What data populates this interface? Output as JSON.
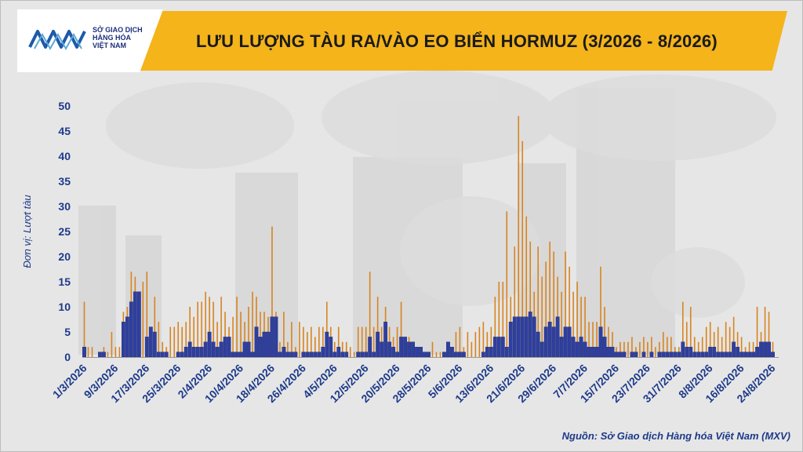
{
  "header": {
    "title": "LƯU LƯỢNG TÀU RA/VÀO EO BIỂN HORMUZ (3/2026 - 8/2026)",
    "logo_lines": [
      "SỞ GIAO DỊCH",
      "HÀNG HÓA",
      "VIỆT NAM"
    ],
    "logo_mark": "TM"
  },
  "source_text": "Nguồn: Sở Giao dịch Hàng hóa Việt Nam (MXV)",
  "colors": {
    "header_band": "#f4b41a",
    "orange_series": "#d8841f",
    "blue_series": "#2f3f9e",
    "axis_text": "#1d3a8a",
    "background": "#e6e6e6"
  },
  "chart_data": {
    "type": "bar",
    "title": "LƯU LƯỢNG TÀU RA/VÀO EO BIỂN HORMUZ (3/2026 - 8/2026)",
    "ylabel": "Đơn vị: Lượt tàu",
    "xlabel": "",
    "ylim": [
      0,
      50
    ],
    "yticks": [
      0,
      5,
      10,
      15,
      20,
      25,
      30,
      35,
      40,
      45,
      50
    ],
    "xtick_labels": [
      "1/3/2026",
      "9/3/2026",
      "17/3/2026",
      "25/3/2026",
      "2/4/2026",
      "10/4/2026",
      "18/4/2026",
      "26/4/2026",
      "4/5/2026",
      "12/5/2026",
      "20/5/2026",
      "28/5/2026",
      "5/6/2026",
      "13/6/2026",
      "21/6/2026",
      "29/6/2026",
      "7/7/2026",
      "15/7/2026",
      "23/7/2026",
      "31/7/2026",
      "8/8/2026",
      "16/8/2026",
      "24/8/2026"
    ],
    "legend": "none",
    "grid": false,
    "series": [
      {
        "values": [
          11,
          2,
          2,
          0,
          1,
          2,
          1,
          5,
          2,
          2,
          9,
          10,
          17,
          16,
          13,
          15,
          17,
          6,
          12,
          7,
          3,
          2,
          6,
          6,
          7,
          6,
          7,
          10,
          8,
          11,
          11,
          13,
          12,
          11,
          7,
          12,
          9,
          6,
          8,
          12,
          9,
          7,
          10,
          13,
          12,
          9,
          9,
          8,
          26,
          9,
          3,
          9,
          3,
          7,
          2,
          7,
          6,
          5,
          6,
          4,
          6,
          6,
          11,
          6,
          3,
          6,
          3,
          3,
          2,
          1,
          6,
          6,
          6,
          17,
          6,
          12,
          6,
          10,
          6,
          4,
          6,
          11,
          4,
          4,
          3,
          2,
          1,
          1,
          1,
          3,
          1,
          1,
          1,
          3,
          2,
          5,
          6,
          2,
          5,
          3,
          5,
          6,
          7,
          5,
          6,
          12,
          15,
          15,
          29,
          12,
          22,
          48,
          43,
          28,
          23,
          13,
          22,
          16,
          19,
          23,
          21,
          16,
          13,
          21,
          18,
          13,
          15,
          12,
          12,
          7,
          7,
          7,
          18,
          10,
          6,
          5,
          2,
          3,
          3,
          3,
          4,
          2,
          3,
          4,
          3,
          4,
          2,
          3,
          5,
          4,
          4,
          2,
          2,
          11,
          7,
          10,
          4,
          3,
          4,
          6,
          7,
          5,
          6,
          4,
          7,
          6,
          8,
          5,
          4,
          2,
          3,
          3,
          10,
          5,
          10,
          9,
          3,
          0
        ]
      },
      {
        "values": [
          2,
          0,
          0,
          0,
          1,
          1,
          0,
          0,
          0,
          0,
          7,
          8,
          11,
          13,
          13,
          0,
          4,
          6,
          5,
          1,
          1,
          1,
          0,
          0,
          1,
          1,
          2,
          3,
          2,
          2,
          2,
          3,
          5,
          3,
          2,
          3,
          4,
          4,
          1,
          1,
          1,
          3,
          3,
          1,
          6,
          4,
          5,
          5,
          8,
          8,
          1,
          2,
          1,
          1,
          1,
          0,
          1,
          1,
          1,
          1,
          1,
          2,
          5,
          4,
          1,
          2,
          1,
          1,
          0,
          0,
          1,
          1,
          1,
          4,
          1,
          5,
          3,
          7,
          3,
          2,
          1,
          4,
          4,
          3,
          3,
          2,
          2,
          1,
          1,
          0,
          0,
          0,
          1,
          3,
          2,
          1,
          1,
          1,
          0,
          0,
          0,
          0,
          1,
          2,
          2,
          4,
          4,
          4,
          2,
          7,
          8,
          8,
          8,
          8,
          9,
          8,
          5,
          3,
          6,
          7,
          6,
          8,
          4,
          6,
          6,
          4,
          3,
          4,
          3,
          2,
          2,
          2,
          6,
          4,
          2,
          2,
          1,
          1,
          1,
          0,
          1,
          1,
          0,
          1,
          0,
          1,
          0,
          1,
          1,
          1,
          1,
          1,
          1,
          3,
          2,
          2,
          1,
          1,
          1,
          1,
          2,
          2,
          1,
          1,
          1,
          1,
          3,
          2,
          1,
          1,
          1,
          1,
          2,
          3,
          3,
          3,
          1,
          0
        ]
      }
    ]
  }
}
